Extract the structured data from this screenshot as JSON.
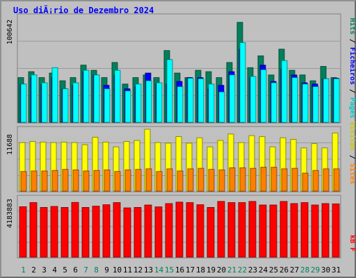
{
  "title": "Uso diÃ¡rio de Dezembro 2024",
  "colors": {
    "hits": "#00805c",
    "files": "#0000ff",
    "pages": "#00ffff",
    "visits": "#ffff00",
    "sites": "#ff8000",
    "kbytes": "#ff0000",
    "weekend_label": "#00805c",
    "weekday_label": "#000000",
    "panel": "#c0c0c0",
    "border": "#808080"
  },
  "right_labels": {
    "top": [
      {
        "text": "Hits",
        "color": "#00805c"
      },
      {
        "text": " / ",
        "color": "#000000"
      },
      {
        "text": "Ficheiros",
        "color": "#0000ff"
      },
      {
        "text": " / ",
        "color": "#000000"
      },
      {
        "text": "Pages",
        "color": "#00c8c8"
      }
    ],
    "middle": [
      {
        "text": "Visitas",
        "color": "#c8c800"
      },
      {
        "text": " / ",
        "color": "#000000"
      },
      {
        "text": "Sites",
        "color": "#ff8000"
      }
    ],
    "bottom": [
      {
        "text": "kB F",
        "color": "#ff0000"
      }
    ]
  },
  "chart_data": [
    {
      "type": "bar",
      "panel": "hits-files-pages",
      "ymax_label": "100642",
      "ylim": [
        0,
        100642
      ],
      "categories": [
        "1",
        "2",
        "3",
        "4",
        "5",
        "6",
        "7",
        "8",
        "9",
        "10",
        "11",
        "12",
        "13",
        "14",
        "15",
        "16",
        "17",
        "18",
        "19",
        "20",
        "21",
        "22",
        "23",
        "24",
        "25",
        "26",
        "27",
        "28",
        "29",
        "30",
        "31"
      ],
      "weekend_days": [
        "1",
        "7",
        "8",
        "14",
        "15",
        "21",
        "22",
        "28",
        "29"
      ],
      "series": [
        {
          "name": "Hits",
          "values": [
            43000,
            48600,
            43000,
            47300,
            40000,
            43000,
            54800,
            49900,
            43000,
            57300,
            36900,
            43000,
            45500,
            43000,
            68600,
            47300,
            43000,
            49900,
            48600,
            43000,
            57300,
            95300,
            52400,
            63600,
            45500,
            69900,
            49900,
            45500,
            40000,
            53600,
            43000
          ]
        },
        {
          "name": "Ficheiros",
          "values": [
            36900,
            43000,
            36900,
            43000,
            32400,
            35700,
            48600,
            45500,
            35700,
            45500,
            32400,
            34400,
            47300,
            36900,
            36900,
            39400,
            43000,
            43000,
            32400,
            35700,
            48600,
            69900,
            43000,
            54800,
            39400,
            51100,
            45500,
            38100,
            36900,
            41900,
            42400
          ]
        },
        {
          "name": "Pages",
          "values": [
            36900,
            45500,
            38100,
            52400,
            32400,
            38100,
            49900,
            45500,
            32400,
            49900,
            30400,
            36900,
            40000,
            38100,
            60000,
            34400,
            42400,
            41900,
            36900,
            29400,
            45500,
            76100,
            44100,
            50400,
            38100,
            59100,
            43000,
            36900,
            34400,
            41900,
            41900
          ]
        }
      ]
    },
    {
      "type": "bar",
      "panel": "visits-sites",
      "ymax_label": "11688",
      "ylim": [
        0,
        11688
      ],
      "categories": [
        "1",
        "2",
        "3",
        "4",
        "5",
        "6",
        "7",
        "8",
        "9",
        "10",
        "11",
        "12",
        "13",
        "14",
        "15",
        "16",
        "17",
        "18",
        "19",
        "20",
        "21",
        "22",
        "23",
        "24",
        "25",
        "26",
        "27",
        "28",
        "29",
        "30",
        "31"
      ],
      "series": [
        {
          "name": "Visitas",
          "values": [
            9200,
            9400,
            9300,
            9200,
            9300,
            9200,
            8800,
            10200,
            9300,
            8400,
            9400,
            9600,
            11688,
            9200,
            9100,
            10300,
            9100,
            10100,
            8400,
            9600,
            10800,
            9200,
            10500,
            10300,
            8400,
            10100,
            9800,
            8200,
            9000,
            8200,
            11000
          ]
        },
        {
          "name": "Sites",
          "values": [
            3800,
            3900,
            3900,
            4000,
            4200,
            4100,
            3900,
            4000,
            4100,
            3800,
            4100,
            4200,
            4300,
            3800,
            4300,
            3900,
            4300,
            4400,
            4200,
            4100,
            4500,
            4500,
            4400,
            4600,
            4600,
            4300,
            4400,
            3500,
            4000,
            4300,
            4300
          ]
        }
      ]
    },
    {
      "type": "bar",
      "panel": "kbytes",
      "ymax_label": "4183883",
      "ylim": [
        0,
        4183883
      ],
      "categories": [
        "1",
        "2",
        "3",
        "4",
        "5",
        "6",
        "7",
        "8",
        "9",
        "10",
        "11",
        "12",
        "13",
        "14",
        "15",
        "16",
        "17",
        "18",
        "19",
        "20",
        "21",
        "22",
        "23",
        "24",
        "25",
        "26",
        "27",
        "28",
        "29",
        "30",
        "31"
      ],
      "series": [
        {
          "name": "kB F",
          "values": [
            3580000,
            3870000,
            3530000,
            3600000,
            3530000,
            3880000,
            3530000,
            3620000,
            3720000,
            3870000,
            3500000,
            3530000,
            3700000,
            3570000,
            3800000,
            3900000,
            3870000,
            3720000,
            3530000,
            3950000,
            3870000,
            3870000,
            3950000,
            3700000,
            3700000,
            3950000,
            3800000,
            3870000,
            3700000,
            3800000,
            3780000
          ]
        }
      ]
    }
  ]
}
